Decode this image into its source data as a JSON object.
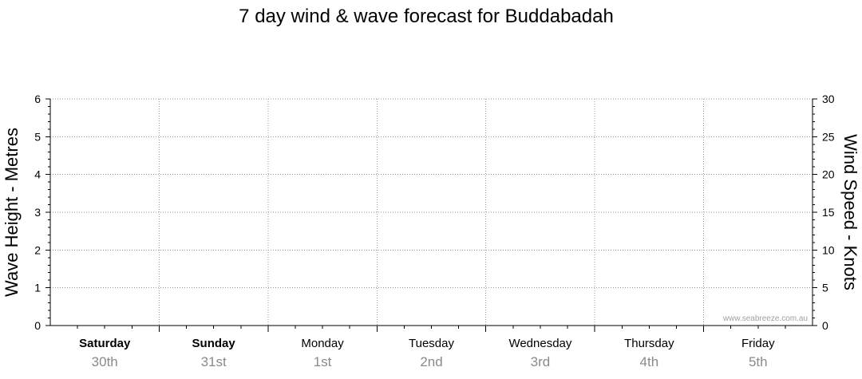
{
  "chart_data": {
    "type": "line",
    "title": "7 day wind & wave forecast for Buddabadah",
    "ylabel": "Wave Height - Metres",
    "y2label": "Wind Speed - Knots",
    "ylim": [
      0,
      6
    ],
    "y2lim": [
      0,
      30
    ],
    "y_ticks": [
      "0",
      "1",
      "2",
      "3",
      "4",
      "5",
      "6"
    ],
    "y2_ticks": [
      "0",
      "5",
      "10",
      "15",
      "20",
      "25",
      "30"
    ],
    "grid": true,
    "days": [
      {
        "day": "Saturday",
        "date": "30th",
        "bold": true
      },
      {
        "day": "Sunday",
        "date": "31st",
        "bold": true
      },
      {
        "day": "Monday",
        "date": "1st",
        "bold": false
      },
      {
        "day": "Tuesday",
        "date": "2nd",
        "bold": false
      },
      {
        "day": "Wednesday",
        "date": "3rd",
        "bold": false
      },
      {
        "day": "Thursday",
        "date": "4th",
        "bold": false
      },
      {
        "day": "Friday",
        "date": "5th",
        "bold": false
      }
    ],
    "series": []
  },
  "credit": "www.seabreeze.com.au",
  "colors": {
    "grid": "#9a9a9a",
    "axis": "#000000",
    "date": "#8a8a8a",
    "credit": "#a0a0a0"
  }
}
